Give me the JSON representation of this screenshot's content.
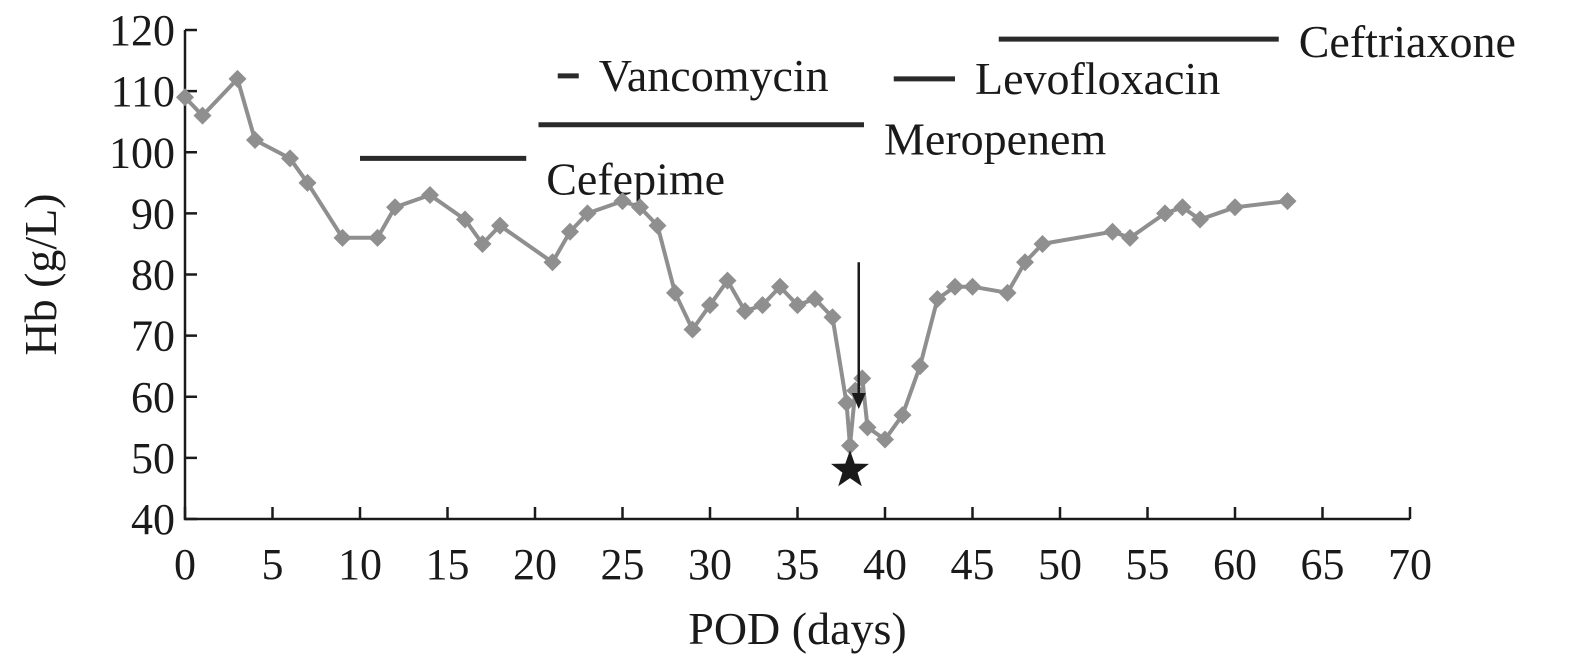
{
  "chart_data": {
    "type": "line",
    "xlabel": "POD (days)",
    "ylabel": "Hb (g/L)",
    "xlim": [
      0,
      70
    ],
    "ylim": [
      40,
      120
    ],
    "xticks": [
      0,
      5,
      10,
      15,
      20,
      25,
      30,
      35,
      40,
      45,
      50,
      55,
      60,
      65,
      70
    ],
    "yticks": [
      40,
      50,
      60,
      70,
      80,
      90,
      100,
      110,
      120
    ],
    "grid": false,
    "line_color": "#8f8f8f",
    "marker": "diamond",
    "series": [
      {
        "x": [
          0,
          1,
          3,
          4,
          6,
          7,
          9,
          11,
          12,
          14,
          16,
          17,
          18,
          21,
          22,
          23,
          25,
          26,
          27,
          28,
          29,
          30,
          31,
          32,
          33,
          34,
          35,
          36,
          37,
          37.8,
          38,
          38.3,
          38.7,
          39,
          40,
          41,
          42,
          43,
          44,
          45,
          47,
          48,
          49,
          53,
          54,
          56,
          57,
          58,
          60,
          63
        ],
        "y": [
          109,
          106,
          112,
          102,
          99,
          95,
          86,
          86,
          91,
          93,
          89,
          85,
          88,
          82,
          87,
          90,
          92,
          91,
          88,
          77,
          71,
          75,
          79,
          74,
          75,
          78,
          75,
          76,
          73,
          59,
          52,
          61,
          63,
          55,
          53,
          57,
          65,
          76,
          78,
          78,
          77,
          82,
          85,
          87,
          86,
          90,
          91,
          89,
          91,
          92
        ]
      }
    ],
    "treatment_bars": [
      {
        "label": "Cefepime",
        "start": 10,
        "end": 19.5,
        "y": 99
      },
      {
        "label": "Meropenem",
        "start": 20.2,
        "end": 38.8,
        "y": 104.5
      },
      {
        "label": "Vancomycin",
        "start": 21.3,
        "end": 22.5,
        "y": 112.5
      },
      {
        "label": "Levofloxacin",
        "start": 40.5,
        "end": 44,
        "y": 112
      },
      {
        "label": "Ceftriaxone",
        "start": 46.5,
        "end": 62.5,
        "y": 118.5
      }
    ],
    "arrow": {
      "x": 38.5,
      "y_from": 82,
      "y_to": 58
    },
    "star": {
      "x": 38,
      "y": 48
    }
  }
}
